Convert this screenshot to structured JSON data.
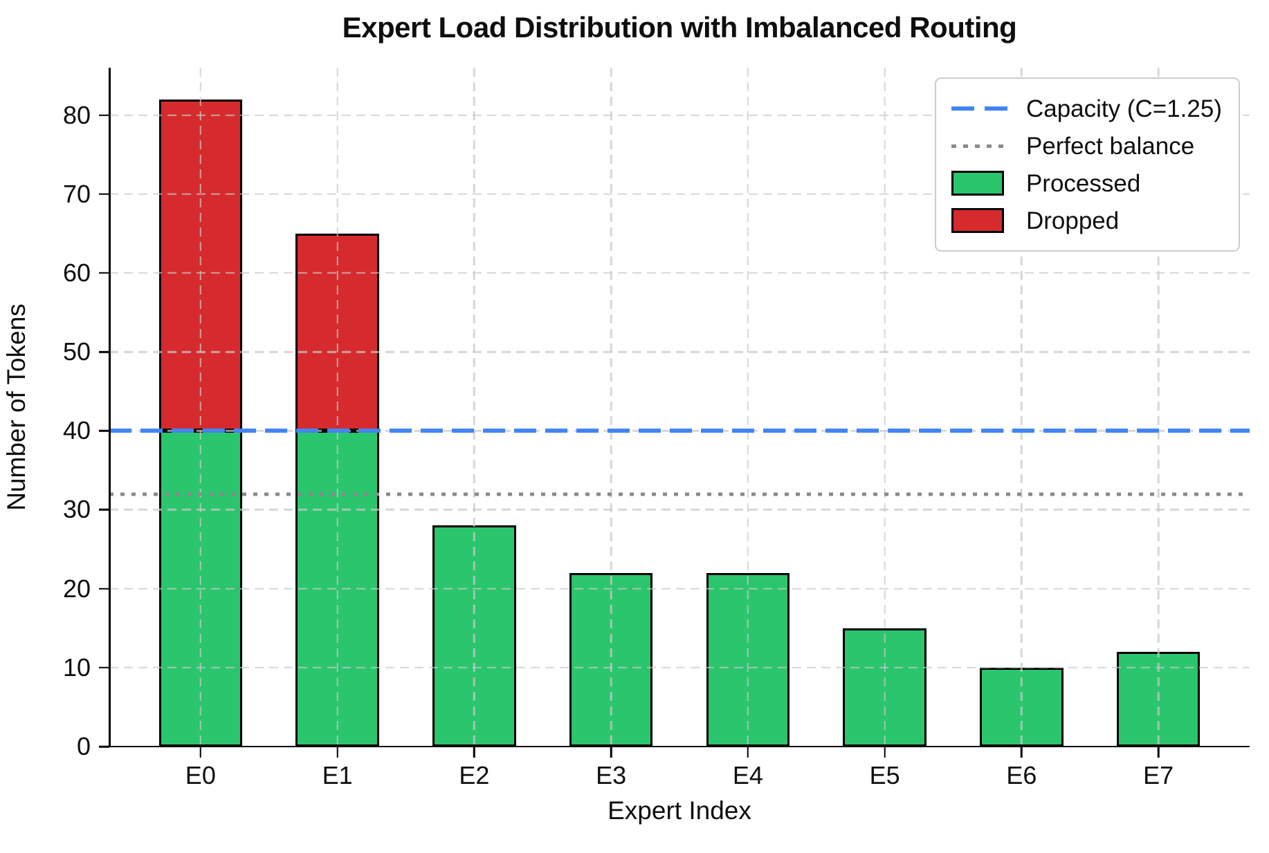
{
  "chart_data": {
    "type": "bar",
    "stacked": true,
    "title": "Expert Load Distribution with Imbalanced Routing",
    "xlabel": "Expert Index",
    "ylabel": "Number of Tokens",
    "categories": [
      "E0",
      "E1",
      "E2",
      "E3",
      "E4",
      "E5",
      "E6",
      "E7"
    ],
    "series": [
      {
        "name": "Processed",
        "color": "#2bc56d",
        "values": [
          40,
          40,
          28,
          22,
          22,
          15,
          10,
          12
        ]
      },
      {
        "name": "Dropped",
        "color": "#d62b2e",
        "values": [
          42,
          25,
          0,
          0,
          0,
          0,
          0,
          0
        ]
      }
    ],
    "total_tokens": [
      82,
      65,
      28,
      22,
      22,
      15,
      10,
      12
    ],
    "reference_lines": [
      {
        "label": "Capacity (C=1.25)",
        "value": 40,
        "style": "dashed",
        "color": "#4285f4"
      },
      {
        "label": "Perfect balance",
        "value": 32,
        "style": "dotted",
        "color": "#8a8a8a"
      }
    ],
    "ylim": [
      0,
      86
    ],
    "yticks": [
      0,
      10,
      20,
      30,
      40,
      50,
      60,
      70,
      80
    ],
    "grid": true,
    "legend_position": "upper right",
    "legend": [
      {
        "label": "Capacity (C=1.25)",
        "swatch": "dashed-line",
        "color": "#4285f4"
      },
      {
        "label": "Perfect balance",
        "swatch": "dotted-line",
        "color": "#8a8a8a"
      },
      {
        "label": "Processed",
        "swatch": "rect",
        "color": "#2bc56d"
      },
      {
        "label": "Dropped",
        "swatch": "rect",
        "color": "#d62b2e"
      }
    ]
  }
}
